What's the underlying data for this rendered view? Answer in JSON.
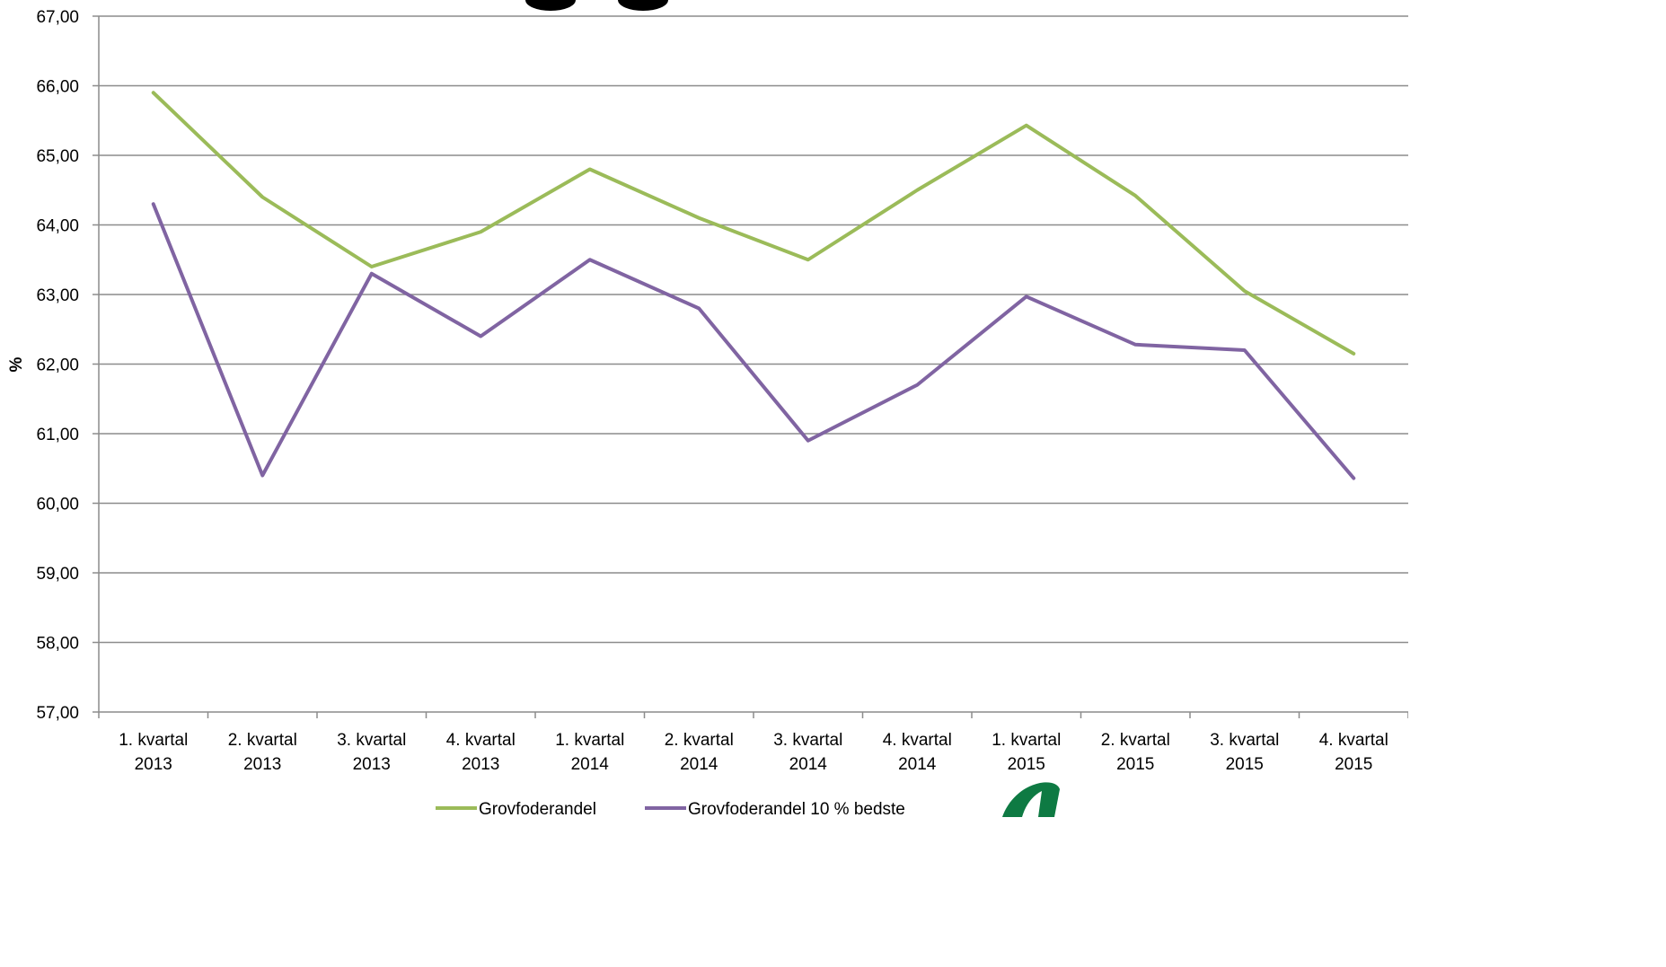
{
  "chart_data": {
    "type": "line",
    "ylabel": "%",
    "ylim": [
      57,
      67
    ],
    "y_tick_labels": [
      "57,00",
      "58,00",
      "59,00",
      "60,00",
      "61,00",
      "62,00",
      "63,00",
      "64,00",
      "65,00",
      "66,00",
      "67,00"
    ],
    "categories": [
      [
        "1. kvartal",
        "2013"
      ],
      [
        "2. kvartal",
        "2013"
      ],
      [
        "3. kvartal",
        "2013"
      ],
      [
        "4. kvartal",
        "2013"
      ],
      [
        "1. kvartal",
        "2014"
      ],
      [
        "2. kvartal",
        "2014"
      ],
      [
        "3. kvartal",
        "2014"
      ],
      [
        "4. kvartal",
        "2014"
      ],
      [
        "1. kvartal",
        "2015"
      ],
      [
        "2. kvartal",
        "2015"
      ],
      [
        "3. kvartal",
        "2015"
      ],
      [
        "4. kvartal",
        "2015"
      ]
    ],
    "series": [
      {
        "name": "Grovfoderandel",
        "color": "#9bbb59",
        "values": [
          65.9,
          64.4,
          63.4,
          63.9,
          64.8,
          64.1,
          63.5,
          64.5,
          65.43,
          64.42,
          63.05,
          62.15
        ]
      },
      {
        "name": "Grovfoderandel 10 % bedste",
        "color": "#8064a2",
        "values": [
          64.3,
          60.4,
          63.3,
          62.4,
          63.5,
          62.8,
          60.9,
          61.7,
          62.97,
          62.28,
          62.2,
          60.36
        ]
      }
    ],
    "grid": true,
    "legend_position": "bottom"
  }
}
